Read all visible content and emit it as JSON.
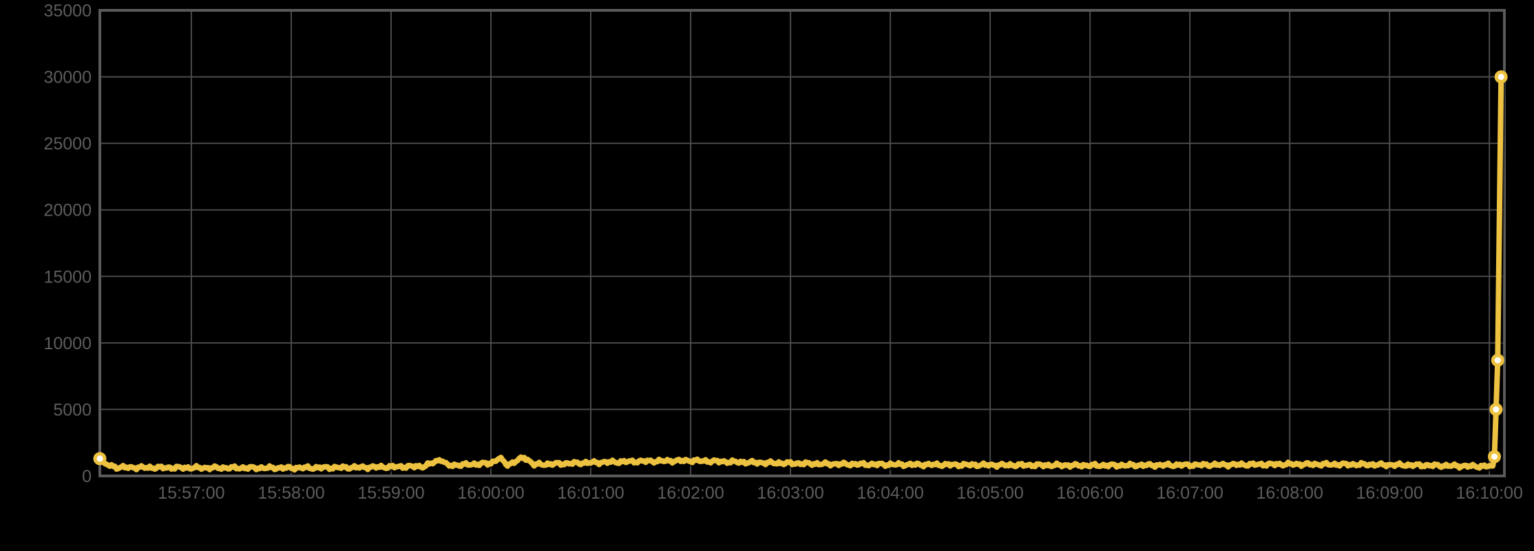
{
  "page": {
    "background_color": "#000000"
  },
  "chart_data": {
    "type": "line",
    "title": "",
    "xlabel": "",
    "ylabel": "",
    "legend": "none",
    "grid": {
      "background_color": "#000000",
      "gridline_color": "#4a4a4c",
      "border_color": "#5a5a5c",
      "label_color": "#5d5d5f",
      "gridlines_on": true
    },
    "x_axis": {
      "tick_labels": [
        "15:57:00",
        "15:58:00",
        "15:59:00",
        "16:00:00",
        "16:01:00",
        "16:02:00",
        "16:03:00",
        "16:04:00",
        "16:05:00",
        "16:06:00",
        "16:07:00",
        "16:08:00",
        "16:09:00",
        "16:10:00"
      ],
      "range": [
        "15:56:05",
        "16:10:09"
      ]
    },
    "y_axis": {
      "tick_labels": [
        "0",
        "5000",
        "10000",
        "15000",
        "20000",
        "25000",
        "30000",
        "35000"
      ],
      "tick_values": [
        0,
        5000,
        10000,
        15000,
        20000,
        25000,
        30000,
        35000
      ],
      "range": [
        0,
        35000
      ]
    },
    "series": [
      {
        "name": "series-1",
        "color": "#edc240",
        "marker_fill_color": "#ffffff",
        "line_width": 8,
        "noise_amplitude": 150,
        "noise_until": "16:10:02",
        "keypoints": [
          [
            "15:56:05",
            1300
          ],
          [
            "15:56:08",
            900
          ],
          [
            "15:56:15",
            640
          ],
          [
            "15:57:00",
            610
          ],
          [
            "15:58:00",
            600
          ],
          [
            "15:58:40",
            640
          ],
          [
            "15:59:20",
            720
          ],
          [
            "15:59:30",
            1250
          ],
          [
            "15:59:34",
            780
          ],
          [
            "16:00:00",
            950
          ],
          [
            "16:00:05",
            1350
          ],
          [
            "16:00:10",
            820
          ],
          [
            "16:00:20",
            1400
          ],
          [
            "16:00:26",
            850
          ],
          [
            "16:01:00",
            1000
          ],
          [
            "16:01:30",
            1100
          ],
          [
            "16:02:00",
            1150
          ],
          [
            "16:02:40",
            1000
          ],
          [
            "16:03:20",
            900
          ],
          [
            "16:04:00",
            860
          ],
          [
            "16:05:00",
            820
          ],
          [
            "16:06:00",
            790
          ],
          [
            "16:07:00",
            820
          ],
          [
            "16:08:00",
            880
          ],
          [
            "16:08:40",
            860
          ],
          [
            "16:09:20",
            800
          ],
          [
            "16:09:55",
            720
          ],
          [
            "16:10:02",
            750
          ],
          [
            "16:10:03",
            1450
          ],
          [
            "16:10:04",
            5000
          ],
          [
            "16:10:05",
            8700
          ],
          [
            "16:10:07",
            30000
          ]
        ],
        "markers": [
          [
            "15:56:05",
            1300
          ],
          [
            "16:10:03",
            1450
          ],
          [
            "16:10:04",
            5000
          ],
          [
            "16:10:05",
            8700
          ],
          [
            "16:10:07",
            30000
          ]
        ]
      }
    ]
  }
}
